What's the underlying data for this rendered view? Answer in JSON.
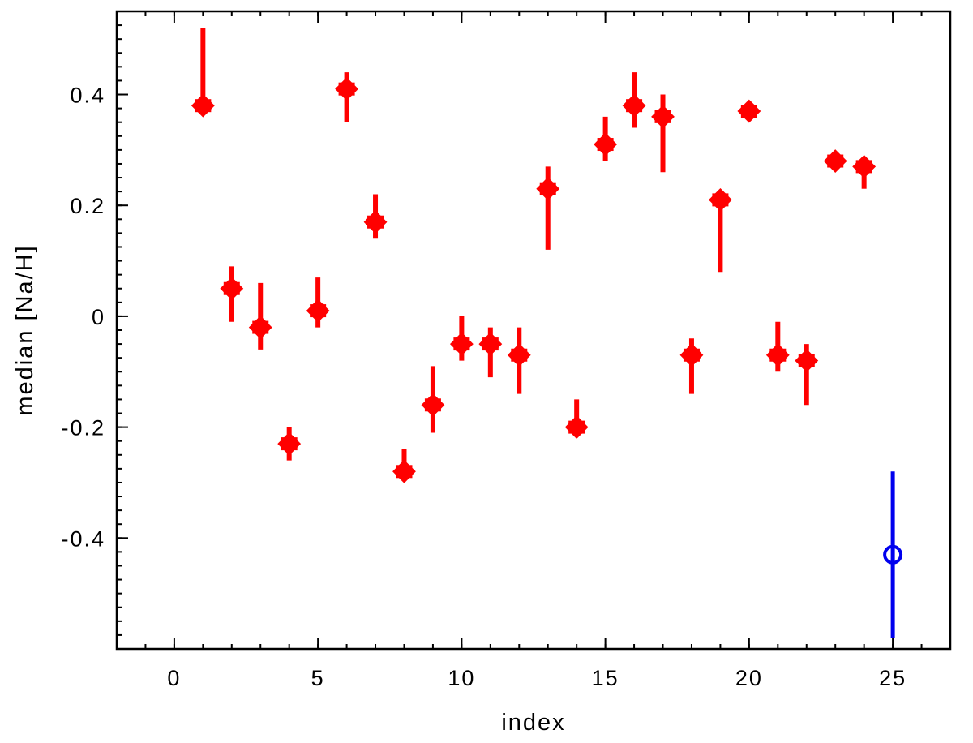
{
  "chart_data": {
    "type": "scatter",
    "title": "",
    "xlabel": "index",
    "ylabel": "median [Na/H]",
    "xlim": [
      -2,
      27
    ],
    "ylim": [
      -0.6,
      0.55
    ],
    "x_ticks": [
      0,
      5,
      10,
      15,
      20,
      25
    ],
    "x_tick_labels": [
      "0",
      "5",
      "10",
      "15",
      "20",
      "25"
    ],
    "y_ticks": [
      -0.4,
      -0.2,
      0,
      0.2,
      0.4
    ],
    "y_tick_labels": [
      "-0.4",
      "-0.2",
      "0",
      "0.2",
      "0.4"
    ],
    "grid": false,
    "legend": "none",
    "colors": {
      "series_main": "#ff0000",
      "series_highlight": "#0000ee",
      "axis": "#000000"
    },
    "series": [
      {
        "marker": "filled-diamond",
        "points": [
          {
            "x": 1,
            "y": 0.38,
            "ylo": 0.38,
            "yhi": 0.52
          },
          {
            "x": 2,
            "y": 0.05,
            "ylo": -0.01,
            "yhi": 0.09
          },
          {
            "x": 3,
            "y": -0.02,
            "ylo": -0.06,
            "yhi": 0.06
          },
          {
            "x": 4,
            "y": -0.23,
            "ylo": -0.26,
            "yhi": -0.2
          },
          {
            "x": 5,
            "y": 0.01,
            "ylo": -0.02,
            "yhi": 0.07
          },
          {
            "x": 6,
            "y": 0.41,
            "ylo": 0.35,
            "yhi": 0.44
          },
          {
            "x": 7,
            "y": 0.17,
            "ylo": 0.14,
            "yhi": 0.22
          },
          {
            "x": 8,
            "y": -0.28,
            "ylo": -0.28,
            "yhi": -0.24
          },
          {
            "x": 9,
            "y": -0.16,
            "ylo": -0.21,
            "yhi": -0.09
          },
          {
            "x": 10,
            "y": -0.05,
            "ylo": -0.08,
            "yhi": 0.0
          },
          {
            "x": 11,
            "y": -0.05,
            "ylo": -0.11,
            "yhi": -0.02
          },
          {
            "x": 12,
            "y": -0.07,
            "ylo": -0.14,
            "yhi": -0.02
          },
          {
            "x": 13,
            "y": 0.23,
            "ylo": 0.12,
            "yhi": 0.27
          },
          {
            "x": 14,
            "y": -0.2,
            "ylo": -0.2,
            "yhi": -0.15
          },
          {
            "x": 15,
            "y": 0.31,
            "ylo": 0.28,
            "yhi": 0.36
          },
          {
            "x": 16,
            "y": 0.38,
            "ylo": 0.34,
            "yhi": 0.44
          },
          {
            "x": 17,
            "y": 0.36,
            "ylo": 0.26,
            "yhi": 0.4
          },
          {
            "x": 18,
            "y": -0.07,
            "ylo": -0.14,
            "yhi": -0.04
          },
          {
            "x": 19,
            "y": 0.21,
            "ylo": 0.08,
            "yhi": 0.21
          },
          {
            "x": 20,
            "y": 0.37,
            "ylo": 0.37,
            "yhi": 0.37
          },
          {
            "x": 21,
            "y": -0.07,
            "ylo": -0.1,
            "yhi": -0.01
          },
          {
            "x": 22,
            "y": -0.08,
            "ylo": -0.16,
            "yhi": -0.05
          },
          {
            "x": 23,
            "y": 0.28,
            "ylo": 0.28,
            "yhi": 0.28
          },
          {
            "x": 24,
            "y": 0.27,
            "ylo": 0.23,
            "yhi": 0.27
          }
        ]
      },
      {
        "marker": "open-circle",
        "points": [
          {
            "x": 25,
            "y": -0.43,
            "ylo": -0.58,
            "yhi": -0.28
          }
        ]
      }
    ]
  }
}
